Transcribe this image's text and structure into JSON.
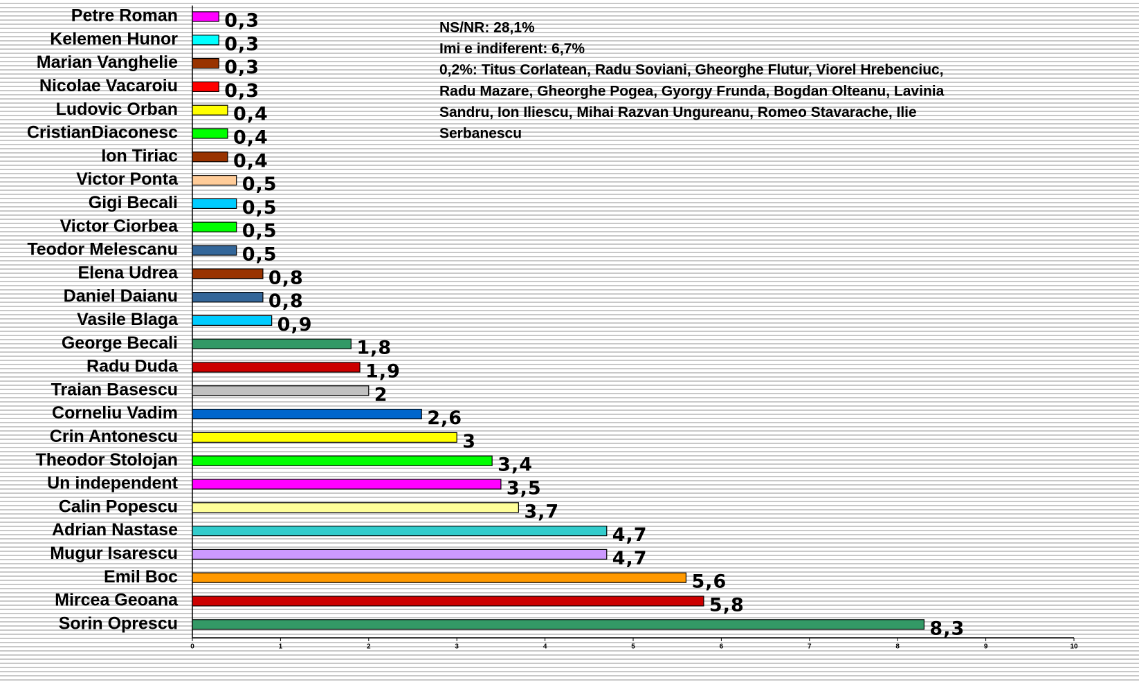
{
  "chart_data": {
    "type": "barh",
    "categories": [
      "Petre Roman",
      "Kelemen Hunor",
      "Marian Vanghelie",
      "Nicolae Vacaroiu",
      "Ludovic Orban",
      "CristianDiaconesc",
      "Ion Tiriac",
      "Victor Ponta",
      "Gigi Becali",
      "Victor Ciorbea",
      "Teodor Melescanu",
      "Elena Udrea",
      "Daniel Daianu",
      "Vasile Blaga",
      "George Becali",
      "Radu Duda",
      "Traian Basescu",
      "Corneliu Vadim",
      "Crin Antonescu",
      "Theodor Stolojan",
      "Un independent",
      "Calin Popescu",
      "Adrian Nastase",
      "Mugur Isarescu",
      "Emil Boc",
      "Mircea Geoana",
      "Sorin Oprescu"
    ],
    "values": [
      0.3,
      0.3,
      0.3,
      0.3,
      0.4,
      0.4,
      0.4,
      0.5,
      0.5,
      0.5,
      0.5,
      0.8,
      0.8,
      0.9,
      1.8,
      1.9,
      2,
      2.6,
      3,
      3.4,
      3.5,
      3.7,
      4.7,
      4.7,
      5.6,
      5.8,
      8.3
    ],
    "value_labels": [
      "0,3",
      "0,3",
      "0,3",
      "0,3",
      "0,4",
      "0,4",
      "0,4",
      "0,5",
      "0,5",
      "0,5",
      "0,5",
      "0,8",
      "0,8",
      "0,9",
      "1,8",
      "1,9",
      "2",
      "2,6",
      "3",
      "3,4",
      "3,5",
      "3,7",
      "4,7",
      "4,7",
      "5,6",
      "5,8",
      "8,3"
    ],
    "colors": [
      "#ff00ff",
      "#00ffff",
      "#993300",
      "#ff0000",
      "#ffff00",
      "#00ff00",
      "#993300",
      "#ffcc99",
      "#00ccff",
      "#00ff00",
      "#336699",
      "#993300",
      "#336699",
      "#00ccff",
      "#339966",
      "#cc0000",
      "#c0c0c0",
      "#0066cc",
      "#ffff00",
      "#00ff00",
      "#ff00ff",
      "#ffff99",
      "#33cccc",
      "#cc99ff",
      "#ff9900",
      "#cc0000",
      "#339966"
    ],
    "xlim": [
      0,
      10
    ],
    "xticks": [
      0,
      1,
      2,
      3,
      4,
      5,
      6,
      7,
      8,
      9,
      10
    ],
    "annotations": [
      "NS/NR: 28,1%",
      "Imi e indiferent: 6,7%",
      "0,2%: Titus Corlatean, Radu Soviani, Gheorghe Flutur, Viorel Hrebenciuc,",
      "Radu Mazare, Gheorghe Pogea, Gyorgy Frunda, Bogdan Olteanu, Lavinia",
      "Sandru, Ion Iliescu, Mihai Razvan Ungureanu, Romeo Stavarache, Ilie",
      "Serbanescu"
    ]
  }
}
